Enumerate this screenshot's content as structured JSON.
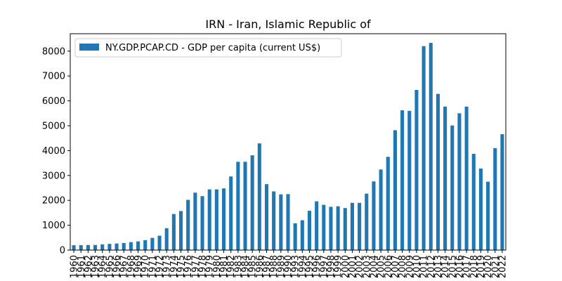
{
  "chart_data": {
    "type": "bar",
    "title": "IRN - Iran, Islamic Republic of",
    "xlabel": "",
    "ylabel": "",
    "legend_position": "top-left",
    "grid": false,
    "ylim": [
      0,
      8700
    ],
    "yticks": [
      0,
      1000,
      2000,
      3000,
      4000,
      5000,
      6000,
      7000,
      8000
    ],
    "series": [
      {
        "name": "NY.GDP.PCAP.CD - GDP per capita (current US$)",
        "color": "#1f77b4",
        "values": [
          195,
          200,
          205,
          205,
          230,
          250,
          265,
          285,
          320,
          350,
          400,
          490,
          580,
          880,
          1450,
          1570,
          2020,
          2310,
          2170,
          2440,
          2440,
          2480,
          2960,
          3550,
          3550,
          3810,
          4290,
          2650,
          2360,
          2240,
          2250,
          1080,
          1200,
          1580,
          1960,
          1820,
          1740,
          1760,
          1690,
          1900,
          1900,
          2270,
          2760,
          3240,
          3750,
          4820,
          5620,
          5600,
          6440,
          8200,
          8330,
          6280,
          5770,
          5010,
          5500,
          5770,
          3870,
          3280,
          2750,
          4100,
          4660
        ]
      }
    ],
    "categories": [
      "1960",
      "1961",
      "1962",
      "1963",
      "1964",
      "1965",
      "1966",
      "1967",
      "1968",
      "1969",
      "1970",
      "1971",
      "1972",
      "1973",
      "1974",
      "1975",
      "1976",
      "1977",
      "1978",
      "1979",
      "1980",
      "1981",
      "1982",
      "1983",
      "1984",
      "1985",
      "1986",
      "1987",
      "1988",
      "1989",
      "1990",
      "1993",
      "1994",
      "1995",
      "1996",
      "1997",
      "1998",
      "1999",
      "2000",
      "2001",
      "2002",
      "2003",
      "2004",
      "2005",
      "2006",
      "2007",
      "2008",
      "2009",
      "2010",
      "2011",
      "2012",
      "2013",
      "2014",
      "2015",
      "2016",
      "2017",
      "2018",
      "2019",
      "2020",
      "2021",
      "2022"
    ]
  }
}
